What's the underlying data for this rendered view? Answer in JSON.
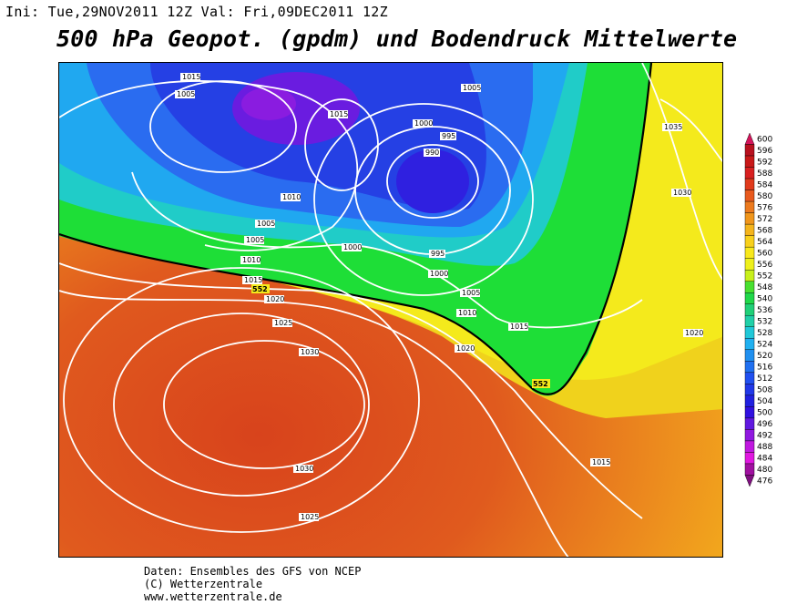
{
  "header": {
    "init_label": "Ini:",
    "init_time": "Tue,29NOV2011 12Z",
    "valid_label": "Val:",
    "valid_time": "Fri,09DEC2011 12Z",
    "title": "500 hPa Geopot. (gpdm) und Bodendruck Mittelwerte"
  },
  "map": {
    "contour_highlight": "552",
    "isobar_labels": [
      "1015",
      "1010",
      "1005",
      "1000",
      "995",
      "990",
      "1020",
      "1025",
      "1030",
      "1035"
    ],
    "colors": {
      "orange": "#e0541f",
      "yellow": "#f5e51a",
      "green": "#1ede37",
      "cyan": "#1fd6e8",
      "blue": "#1f3cea",
      "violet": "#7a1cdc"
    }
  },
  "legend": {
    "levels": [
      "600",
      "596",
      "592",
      "588",
      "584",
      "580",
      "576",
      "572",
      "568",
      "564",
      "560",
      "556",
      "552",
      "548",
      "540",
      "536",
      "532",
      "528",
      "524",
      "520",
      "516",
      "512",
      "508",
      "504",
      "500",
      "496",
      "492",
      "488",
      "484",
      "480",
      "476"
    ],
    "colors": [
      "#d4145a",
      "#b8101e",
      "#c81818",
      "#d82020",
      "#e03a1c",
      "#e85a1e",
      "#ec7a1e",
      "#f0961c",
      "#f4b41c",
      "#f8d01c",
      "#f8e81c",
      "#eef01c",
      "#c8f01c",
      "#48e030",
      "#20d84a",
      "#20d078",
      "#20d0a8",
      "#20c8d8",
      "#20b0f0",
      "#2090f0",
      "#2070f0",
      "#2050f0",
      "#2038e8",
      "#2020e0",
      "#3010e0",
      "#6018e0",
      "#9018e0",
      "#c018e0",
      "#e018e0",
      "#a010a0",
      "#801080"
    ]
  },
  "footer": {
    "line1": "Daten: Ensembles des GFS von NCEP",
    "line2": "(C) Wetterzentrale",
    "line3": "www.wetterzentrale.de"
  }
}
